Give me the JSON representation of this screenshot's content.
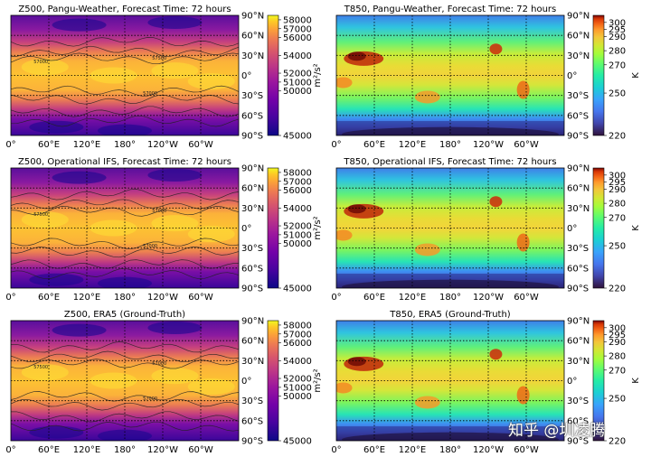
{
  "watermark": "知乎 @圳凌腾",
  "chart_data": [
    {
      "type": "heatmap",
      "variable": "Z500",
      "title": "Z500, Pangu-Weather, Forecast Time: 72 hours",
      "xticks": [
        "0°",
        "60°E",
        "120°E",
        "180°",
        "120°W",
        "60°W"
      ],
      "yticks": [
        "90°N",
        "60°N",
        "30°N",
        "0°",
        "30°S",
        "60°S",
        "90°S"
      ],
      "colorbar": {
        "label": "m²/s²",
        "ticks": [
          58000,
          57000,
          56000,
          54000,
          52000,
          51000,
          50000,
          45000
        ],
        "range": [
          45000,
          58500
        ],
        "colormap": "plasma"
      },
      "contour_labels": [
        "57000",
        "57500",
        "57000"
      ]
    },
    {
      "type": "heatmap",
      "variable": "T850",
      "title": "T850, Pangu-Weather, Forecast Time: 72 hours",
      "xticks": [
        "0°",
        "60°E",
        "120°E",
        "180°",
        "120°W",
        "60°W"
      ],
      "yticks": [
        "90°N",
        "60°N",
        "30°N",
        "0°",
        "30°S",
        "60°S",
        "90°S"
      ],
      "colorbar": {
        "label": "K",
        "ticks": [
          300,
          295,
          290,
          280,
          270,
          250,
          220
        ],
        "range": [
          220,
          305
        ],
        "colormap": "turbo"
      }
    },
    {
      "type": "heatmap",
      "variable": "Z500",
      "title": "Z500, Operational IFS, Forecast Time: 72 hours",
      "xticks": [
        "0°",
        "60°E",
        "120°E",
        "180°",
        "120°W",
        "60°W"
      ],
      "yticks": [
        "90°N",
        "60°N",
        "30°N",
        "0°",
        "30°S",
        "60°S",
        "90°S"
      ],
      "colorbar": {
        "label": "m²/s²",
        "ticks": [
          58000,
          57000,
          56000,
          54000,
          52000,
          51000,
          50000,
          45000
        ],
        "range": [
          45000,
          58500
        ],
        "colormap": "plasma"
      },
      "contour_labels": [
        "57500",
        "57000",
        "57000"
      ]
    },
    {
      "type": "heatmap",
      "variable": "T850",
      "title": "T850, Operational IFS, Forecast Time: 72 hours",
      "xticks": [
        "0°",
        "60°E",
        "120°E",
        "180°",
        "120°W",
        "60°W"
      ],
      "yticks": [
        "90°N",
        "60°N",
        "30°N",
        "0°",
        "30°S",
        "60°S",
        "90°S"
      ],
      "colorbar": {
        "label": "K",
        "ticks": [
          300,
          295,
          290,
          280,
          270,
          250,
          220
        ],
        "range": [
          220,
          305
        ],
        "colormap": "turbo"
      }
    },
    {
      "type": "heatmap",
      "variable": "Z500",
      "title": "Z500, ERA5 (Ground-Truth)",
      "xticks": [
        "0°",
        "60°E",
        "120°E",
        "180°",
        "120°W",
        "60°W"
      ],
      "yticks": [
        "90°N",
        "60°N",
        "30°N",
        "0°",
        "30°S",
        "60°S",
        "90°S"
      ],
      "colorbar": {
        "label": "m²/s²",
        "ticks": [
          58000,
          57000,
          56000,
          54000,
          52000,
          51000,
          50000,
          45000
        ],
        "range": [
          45000,
          58500
        ],
        "colormap": "plasma"
      },
      "contour_labels": [
        "57500",
        "57000",
        "57000"
      ]
    },
    {
      "type": "heatmap",
      "variable": "T850",
      "title": "T850, ERA5 (Ground-Truth)",
      "xticks": [
        "0°",
        "60°E",
        "120°E",
        "180°",
        "120°W",
        "60°W"
      ],
      "yticks": [
        "90°N",
        "60°N",
        "30°N",
        "0°",
        "30°S",
        "60°S",
        "90°S"
      ],
      "colorbar": {
        "label": "K",
        "ticks": [
          300,
          295,
          290,
          280,
          270,
          250,
          220
        ],
        "range": [
          220,
          305
        ],
        "colormap": "turbo"
      }
    }
  ]
}
